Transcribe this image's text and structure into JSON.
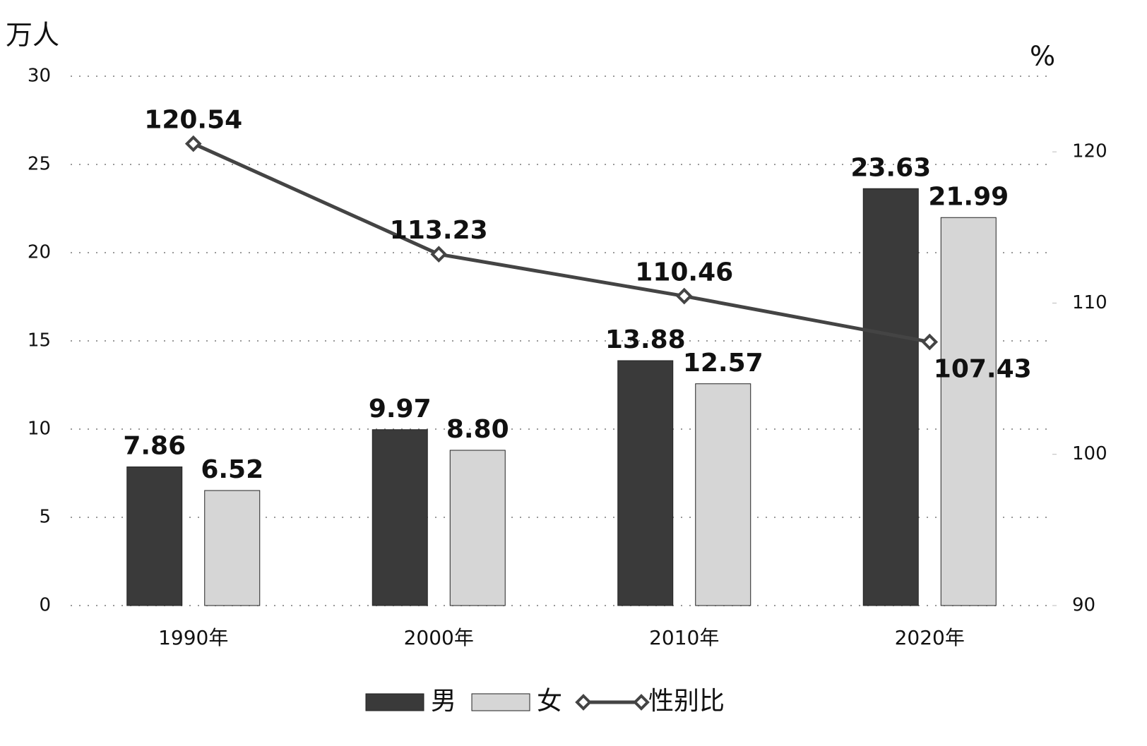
{
  "chart_data": {
    "type": "bar",
    "categories": [
      "1990年",
      "2000年",
      "2010年",
      "2020年"
    ],
    "y_label": "万人",
    "y2_label": "%",
    "ylim": [
      0,
      30
    ],
    "yticks": [
      0,
      5,
      10,
      15,
      20,
      25,
      30
    ],
    "y2lim": [
      90,
      125
    ],
    "y2ticks": [
      90,
      100,
      110,
      120
    ],
    "grid": true,
    "legend": "bottom",
    "series": [
      {
        "name": "男",
        "type": "bar",
        "color": "#3a3a3a",
        "values": [
          7.86,
          9.97,
          13.88,
          23.63
        ]
      },
      {
        "name": "女",
        "type": "bar",
        "color": "#d6d6d6",
        "values": [
          6.52,
          8.8,
          12.57,
          21.99
        ],
        "value_labels": [
          "6.52",
          "8.80",
          "12.57",
          "21.99"
        ]
      },
      {
        "name": "性别比",
        "type": "line",
        "axis": "y2",
        "color": "#444444",
        "values": [
          120.54,
          113.23,
          110.46,
          107.43
        ]
      }
    ]
  }
}
